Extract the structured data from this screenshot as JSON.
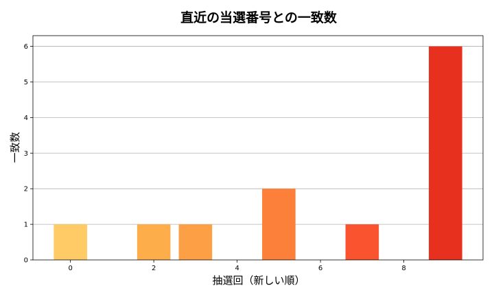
{
  "chart_data": {
    "type": "bar",
    "title": "直近の当選番号との一致数",
    "xlabel": "抽選回（新しい順）",
    "ylabel": "一致数",
    "x": [
      0,
      1,
      2,
      3,
      4,
      5,
      6,
      7,
      8,
      9
    ],
    "values": [
      1,
      0,
      1,
      1,
      0,
      2,
      0,
      1,
      0,
      6
    ],
    "colors": [
      "#fecb66",
      "#fec35e",
      "#fdae4b",
      "#fda045",
      "#fd8d3c",
      "#fc8039",
      "#fc6431",
      "#f9532f",
      "#f03c24",
      "#e8301e"
    ],
    "xticks": [
      0,
      2,
      4,
      6,
      8
    ],
    "yticks": [
      0,
      1,
      2,
      3,
      4,
      5,
      6
    ],
    "xlim": [
      -0.9,
      9.9
    ],
    "ylim": [
      0,
      6.3
    ],
    "grid": "y"
  }
}
